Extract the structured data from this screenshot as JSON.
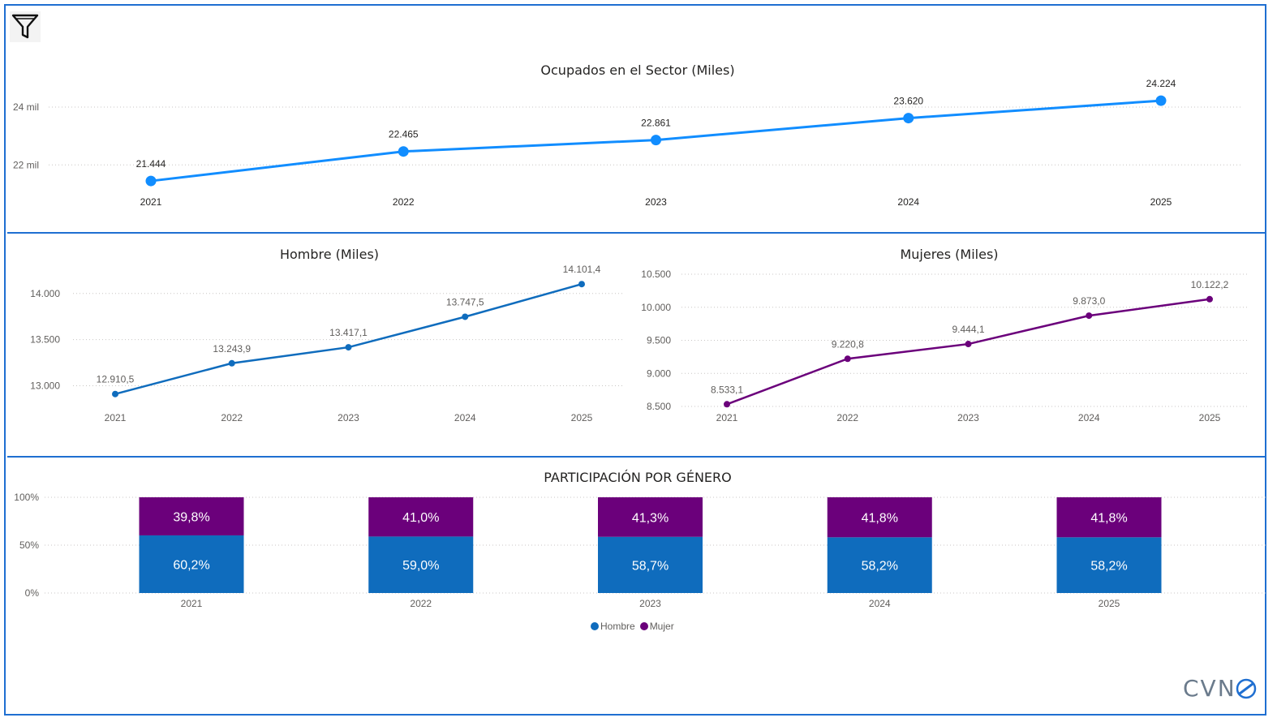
{
  "colors": {
    "accent": "#1f6fd1",
    "line_total": "#118dff",
    "hombre": "#0f6cbd",
    "mujer": "#6b007b",
    "grid": "#c8c6c4"
  },
  "toolbar": {
    "filter_icon": "filter-icon"
  },
  "logo": {
    "text": "CVN"
  },
  "legend": {
    "hombre": "Hombre",
    "mujer": "Mujer"
  },
  "chart_data": [
    {
      "id": "total",
      "type": "line",
      "title": "Ocupados en el Sector (Miles)",
      "categories": [
        "2021",
        "2022",
        "2023",
        "2024",
        "2025"
      ],
      "values": [
        21444,
        22465,
        22861,
        23620,
        24224
      ],
      "labels": [
        "21.444",
        "22.465",
        "22.861",
        "23.620",
        "24.224"
      ],
      "yticks": [
        {
          "value": 22000,
          "label": "22 mil"
        },
        {
          "value": 24000,
          "label": "24 mil"
        }
      ],
      "ylim": [
        20800,
        24900
      ],
      "grid": true
    },
    {
      "id": "hombre",
      "type": "line",
      "title": "Hombre (Miles)",
      "categories": [
        "2021",
        "2022",
        "2023",
        "2024",
        "2025"
      ],
      "values": [
        12910.5,
        13243.9,
        13417.1,
        13747.5,
        14101.4
      ],
      "labels": [
        "12.910,5",
        "13.243,9",
        "13.417,1",
        "13.747,5",
        "14.101,4"
      ],
      "yticks": [
        {
          "value": 13000,
          "label": "13.000"
        },
        {
          "value": 13500,
          "label": "13.500"
        },
        {
          "value": 14000,
          "label": "14.000"
        }
      ],
      "ylim": [
        12820,
        14200
      ],
      "grid": true
    },
    {
      "id": "mujeres",
      "type": "line",
      "title": "Mujeres (Miles)",
      "categories": [
        "2021",
        "2022",
        "2023",
        "2024",
        "2025"
      ],
      "values": [
        8533.1,
        9220.8,
        9444.1,
        9873.0,
        10122.2
      ],
      "labels": [
        "8.533,1",
        "9.220,8",
        "9.444,1",
        "9.873,0",
        "10.122,2"
      ],
      "yticks": [
        {
          "value": 8500,
          "label": "8.500"
        },
        {
          "value": 9000,
          "label": "9.000"
        },
        {
          "value": 9500,
          "label": "9.500"
        },
        {
          "value": 10000,
          "label": "10.000"
        },
        {
          "value": 10500,
          "label": "10.500"
        }
      ],
      "ylim": [
        8500,
        10500
      ],
      "grid": true
    },
    {
      "id": "participacion",
      "type": "bar",
      "stacked": "100%",
      "title": "PARTICIPACIÓN POR GÉNERO",
      "categories": [
        "2021",
        "2022",
        "2023",
        "2024",
        "2025"
      ],
      "series": [
        {
          "name": "Hombre",
          "values": [
            60.2,
            59.0,
            58.7,
            58.2,
            58.2
          ],
          "labels": [
            "60,2%",
            "59,0%",
            "58,7%",
            "58,2%",
            "58,2%"
          ]
        },
        {
          "name": "Mujer",
          "values": [
            39.8,
            41.0,
            41.3,
            41.8,
            41.8
          ],
          "labels": [
            "39,8%",
            "41,0%",
            "41,3%",
            "41,8%",
            "41,8%"
          ]
        }
      ],
      "yticks": [
        {
          "value": 0,
          "label": "0%"
        },
        {
          "value": 50,
          "label": "50%"
        },
        {
          "value": 100,
          "label": "100%"
        }
      ],
      "ylim": [
        0,
        100
      ],
      "legend_position": "bottom-center",
      "grid": true
    }
  ]
}
